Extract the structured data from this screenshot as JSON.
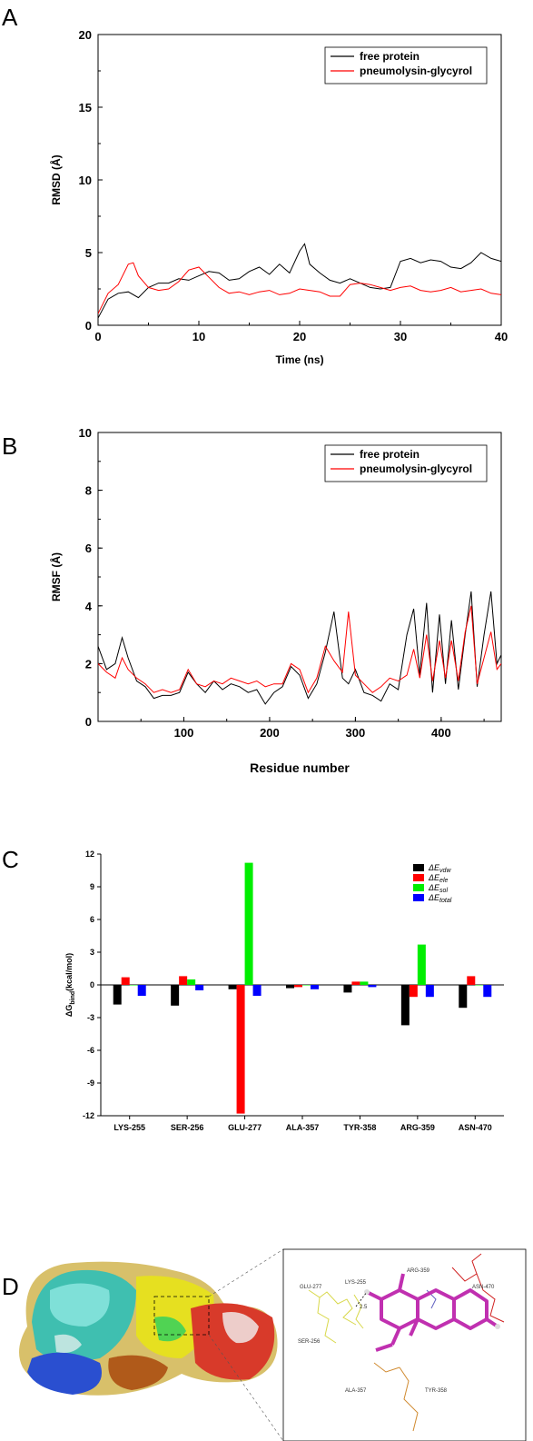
{
  "panels": {
    "A": {
      "label": "A"
    },
    "B": {
      "label": "B"
    },
    "C": {
      "label": "C"
    },
    "D": {
      "label": "D"
    }
  },
  "chart_data": [
    {
      "id": "A",
      "type": "line",
      "xlabel": "Time (ns)",
      "ylabel": "RMSD (Å)",
      "xlim": [
        0,
        40
      ],
      "ylim": [
        0,
        20
      ],
      "xticks": [
        "0",
        "10",
        "20",
        "30",
        "40"
      ],
      "yticks": [
        "0",
        "5",
        "10",
        "15",
        "20"
      ],
      "legend": "top-right",
      "series": [
        {
          "name": "free protein",
          "color": "#000000",
          "x": [
            0,
            1,
            2,
            3,
            4,
            5,
            6,
            7,
            8,
            9,
            10,
            11,
            12,
            13,
            14,
            15,
            16,
            17,
            18,
            19,
            20,
            20.5,
            21,
            22,
            23,
            24,
            25,
            26,
            27,
            28,
            29,
            30,
            31,
            32,
            33,
            34,
            35,
            36,
            37,
            38,
            39,
            40
          ],
          "y": [
            0.5,
            1.8,
            2.2,
            2.3,
            1.9,
            2.6,
            2.9,
            2.9,
            3.2,
            3.1,
            3.4,
            3.7,
            3.6,
            3.1,
            3.2,
            3.7,
            4.0,
            3.5,
            4.2,
            3.6,
            5.1,
            5.6,
            4.2,
            3.6,
            3.1,
            2.9,
            3.2,
            2.9,
            2.6,
            2.5,
            2.6,
            4.4,
            4.6,
            4.3,
            4.5,
            4.4,
            4.0,
            3.9,
            4.3,
            5.0,
            4.6,
            4.4
          ]
        },
        {
          "name": "pneumolysin-glycyrol",
          "color": "#ff0000",
          "x": [
            0,
            1,
            2,
            3,
            3.5,
            4,
            5,
            6,
            7,
            8,
            9,
            10,
            11,
            12,
            13,
            14,
            15,
            16,
            17,
            18,
            19,
            20,
            21,
            22,
            23,
            24,
            25,
            26,
            27,
            28,
            29,
            30,
            31,
            32,
            33,
            34,
            35,
            36,
            37,
            38,
            39,
            40
          ],
          "y": [
            0.8,
            2.2,
            2.8,
            4.2,
            4.3,
            3.4,
            2.6,
            2.4,
            2.5,
            3.0,
            3.8,
            4.0,
            3.3,
            2.6,
            2.2,
            2.3,
            2.1,
            2.3,
            2.4,
            2.1,
            2.2,
            2.5,
            2.4,
            2.3,
            2.0,
            2.0,
            2.8,
            2.9,
            2.8,
            2.6,
            2.4,
            2.6,
            2.7,
            2.4,
            2.3,
            2.4,
            2.6,
            2.3,
            2.4,
            2.5,
            2.2,
            2.1
          ]
        }
      ]
    },
    {
      "id": "B",
      "type": "line",
      "xlabel": "Residue number",
      "ylabel": "RMSF (Å)",
      "xlim": [
        0,
        470
      ],
      "ylim": [
        0,
        10
      ],
      "xticks": [
        "100",
        "200",
        "300",
        "400"
      ],
      "yticks": [
        "0",
        "2",
        "4",
        "6",
        "8",
        "10"
      ],
      "legend": "top-right",
      "series": [
        {
          "name": "free protein",
          "color": "#000000",
          "x": [
            0,
            10,
            20,
            28,
            35,
            45,
            55,
            65,
            75,
            85,
            95,
            105,
            115,
            125,
            135,
            145,
            155,
            165,
            175,
            185,
            195,
            205,
            215,
            225,
            235,
            245,
            255,
            265,
            275,
            285,
            292,
            300,
            310,
            320,
            330,
            340,
            350,
            360,
            368,
            375,
            383,
            390,
            398,
            405,
            412,
            420,
            428,
            435,
            442,
            450,
            458,
            465,
            470
          ],
          "y": [
            2.6,
            1.8,
            2.0,
            2.9,
            2.2,
            1.4,
            1.2,
            0.8,
            0.9,
            0.9,
            1.0,
            1.7,
            1.3,
            1.0,
            1.4,
            1.1,
            1.3,
            1.2,
            1.0,
            1.1,
            0.6,
            1.0,
            1.2,
            1.9,
            1.6,
            0.8,
            1.3,
            2.4,
            3.8,
            1.5,
            1.3,
            1.8,
            1.0,
            0.9,
            0.7,
            1.3,
            1.1,
            3.0,
            3.9,
            1.6,
            4.1,
            1.0,
            3.7,
            1.3,
            3.5,
            1.1,
            3.0,
            4.5,
            1.2,
            3.0,
            4.5,
            2.0,
            2.3
          ]
        },
        {
          "name": "pneumolysin-glycyrol",
          "color": "#ff0000",
          "x": [
            0,
            10,
            20,
            28,
            35,
            45,
            55,
            65,
            75,
            85,
            95,
            105,
            115,
            125,
            135,
            145,
            155,
            165,
            175,
            185,
            195,
            205,
            215,
            225,
            235,
            245,
            255,
            265,
            275,
            285,
            292,
            300,
            310,
            320,
            330,
            340,
            350,
            360,
            368,
            375,
            383,
            390,
            398,
            405,
            412,
            420,
            428,
            435,
            442,
            450,
            458,
            465,
            470
          ],
          "y": [
            2.0,
            1.7,
            1.5,
            2.2,
            1.8,
            1.5,
            1.3,
            1.0,
            1.1,
            1.0,
            1.1,
            1.8,
            1.3,
            1.2,
            1.4,
            1.3,
            1.5,
            1.4,
            1.3,
            1.4,
            1.2,
            1.3,
            1.3,
            2.0,
            1.8,
            1.0,
            1.5,
            2.6,
            2.1,
            1.7,
            3.8,
            1.6,
            1.3,
            1.0,
            1.2,
            1.5,
            1.4,
            1.6,
            2.5,
            1.5,
            3.0,
            1.4,
            2.8,
            1.5,
            2.8,
            1.4,
            3.1,
            4.0,
            1.3,
            2.2,
            3.1,
            1.8,
            2.0
          ]
        }
      ]
    },
    {
      "id": "C",
      "type": "bar",
      "ylabel_main": "ΔG",
      "ylabel_sub": "bind",
      "ylabel_rest": "(kcal/mol)",
      "ylim": [
        -12,
        12
      ],
      "yticks": [
        "12",
        "9",
        "6",
        "3",
        "0",
        "-3",
        "-6",
        "-9",
        "-12"
      ],
      "categories": [
        "LYS-255",
        "SER-256",
        "GLU-277",
        "ALA-357",
        "TYR-358",
        "ARG-359",
        "ASN-470"
      ],
      "legend": "top-right",
      "series": [
        {
          "name": "ΔE",
          "sub": "vdw",
          "color": "#000000",
          "values": [
            -1.8,
            -1.9,
            -0.4,
            -0.3,
            -0.7,
            -3.7,
            -2.1
          ]
        },
        {
          "name": "ΔE",
          "sub": "ele",
          "color": "#ff0000",
          "values": [
            0.7,
            0.8,
            -11.8,
            -0.2,
            0.3,
            -1.1,
            0.8
          ]
        },
        {
          "name": "ΔE",
          "sub": "sol",
          "color": "#00ee00",
          "values": [
            0.0,
            0.5,
            11.2,
            0.0,
            0.3,
            3.7,
            0.0
          ]
        },
        {
          "name": "ΔE",
          "sub": "total",
          "color": "#0000ff",
          "values": [
            -1.0,
            -0.5,
            -1.0,
            -0.4,
            -0.2,
            -1.1,
            -1.1
          ]
        }
      ]
    }
  ],
  "residue_labels": [
    "GLU-277",
    "LYS-255",
    "ARG-359",
    "ASN-470",
    "SER-256",
    "ALA-357",
    "TYR-358"
  ],
  "distance_label": "2.5"
}
